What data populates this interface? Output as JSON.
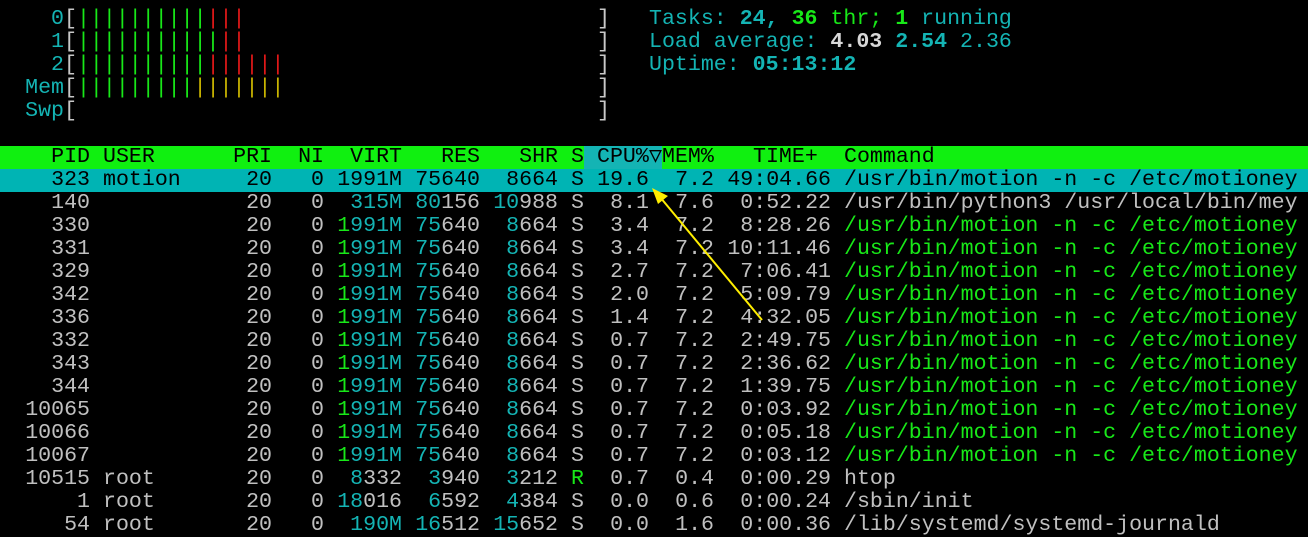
{
  "meters": [
    {
      "label": "0",
      "segments": [
        {
          "count": 10,
          "color": "#18e818"
        },
        {
          "count": 3,
          "color": "#e01818"
        }
      ]
    },
    {
      "label": "1",
      "segments": [
        {
          "count": 11,
          "color": "#18e818"
        },
        {
          "count": 2,
          "color": "#e01818"
        }
      ]
    },
    {
      "label": "2",
      "segments": [
        {
          "count": 10,
          "color": "#18e818"
        },
        {
          "count": 6,
          "color": "#e01818"
        }
      ]
    },
    {
      "label": "Mem",
      "segments": [
        {
          "count": 9,
          "color": "#18e818"
        },
        {
          "count": 7,
          "color": "#c8b400"
        }
      ]
    },
    {
      "label": "Swp",
      "segments": []
    }
  ],
  "summary": {
    "tasks_label": "Tasks: ",
    "tasks": "24",
    "sep": ", ",
    "threads": "36",
    "threads_label": " thr; ",
    "running": "1",
    "running_label": " running",
    "load_label": "Load average: ",
    "load1": "4.03",
    "load5": "2.54",
    "load15": "2.36",
    "uptime_label": "Uptime: ",
    "uptime": "05:13:12"
  },
  "columns": {
    "pid": "PID",
    "user": "USER",
    "pri": "PRI",
    "ni": "NI",
    "virt": "VIRT",
    "res": "RES",
    "shr": "SHR",
    "s": "S",
    "cpu": "CPU%",
    "sort_icon": "▽",
    "mem": "MEM%",
    "time": "TIME+",
    "cmd": "Command"
  },
  "sort_column": "cpu",
  "colors": {
    "header_bg": "#10f010",
    "selection_bg": "#00b4b4",
    "annotation_arrow": "#ffee00"
  },
  "processes": [
    {
      "pid": "323",
      "user": "motion",
      "pri": "20",
      "ni": "0",
      "virt": "1991M",
      "res": "75640",
      "shr": "8664",
      "s": "S",
      "cpu": "19.6",
      "mem": "7.2",
      "time": "49:04.66",
      "cmd": "/usr/bin/motion -n -c /etc/motioney",
      "selected": true
    },
    {
      "pid": "140",
      "user": "",
      "pri": "20",
      "ni": "0",
      "virt": "315M",
      "res": "80156",
      "shr": "10988",
      "s": "S",
      "cpu": "8.1",
      "mem": "7.6",
      "time": "0:52.22",
      "cmd": "/usr/bin/python3 /usr/local/bin/mey"
    },
    {
      "pid": "330",
      "user": "",
      "pri": "20",
      "ni": "0",
      "virt": "1991M",
      "res": "75640",
      "shr": "8664",
      "s": "S",
      "cpu": "3.4",
      "mem": "7.2",
      "time": "8:28.26",
      "cmd": "/usr/bin/motion -n -c /etc/motioney",
      "thread": true
    },
    {
      "pid": "331",
      "user": "",
      "pri": "20",
      "ni": "0",
      "virt": "1991M",
      "res": "75640",
      "shr": "8664",
      "s": "S",
      "cpu": "3.4",
      "mem": "7.2",
      "time": "10:11.46",
      "cmd": "/usr/bin/motion -n -c /etc/motioney",
      "thread": true
    },
    {
      "pid": "329",
      "user": "",
      "pri": "20",
      "ni": "0",
      "virt": "1991M",
      "res": "75640",
      "shr": "8664",
      "s": "S",
      "cpu": "2.7",
      "mem": "7.2",
      "time": "7:06.41",
      "cmd": "/usr/bin/motion -n -c /etc/motioney",
      "thread": true
    },
    {
      "pid": "342",
      "user": "",
      "pri": "20",
      "ni": "0",
      "virt": "1991M",
      "res": "75640",
      "shr": "8664",
      "s": "S",
      "cpu": "2.0",
      "mem": "7.2",
      "time": "5:09.79",
      "cmd": "/usr/bin/motion -n -c /etc/motioney",
      "thread": true
    },
    {
      "pid": "336",
      "user": "",
      "pri": "20",
      "ni": "0",
      "virt": "1991M",
      "res": "75640",
      "shr": "8664",
      "s": "S",
      "cpu": "1.4",
      "mem": "7.2",
      "time": "4:32.05",
      "cmd": "/usr/bin/motion -n -c /etc/motioney",
      "thread": true
    },
    {
      "pid": "332",
      "user": "",
      "pri": "20",
      "ni": "0",
      "virt": "1991M",
      "res": "75640",
      "shr": "8664",
      "s": "S",
      "cpu": "0.7",
      "mem": "7.2",
      "time": "2:49.75",
      "cmd": "/usr/bin/motion -n -c /etc/motioney",
      "thread": true
    },
    {
      "pid": "343",
      "user": "",
      "pri": "20",
      "ni": "0",
      "virt": "1991M",
      "res": "75640",
      "shr": "8664",
      "s": "S",
      "cpu": "0.7",
      "mem": "7.2",
      "time": "2:36.62",
      "cmd": "/usr/bin/motion -n -c /etc/motioney",
      "thread": true
    },
    {
      "pid": "344",
      "user": "",
      "pri": "20",
      "ni": "0",
      "virt": "1991M",
      "res": "75640",
      "shr": "8664",
      "s": "S",
      "cpu": "0.7",
      "mem": "7.2",
      "time": "1:39.75",
      "cmd": "/usr/bin/motion -n -c /etc/motioney",
      "thread": true
    },
    {
      "pid": "10065",
      "user": "",
      "pri": "20",
      "ni": "0",
      "virt": "1991M",
      "res": "75640",
      "shr": "8664",
      "s": "S",
      "cpu": "0.7",
      "mem": "7.2",
      "time": "0:03.92",
      "cmd": "/usr/bin/motion -n -c /etc/motioney",
      "thread": true
    },
    {
      "pid": "10066",
      "user": "",
      "pri": "20",
      "ni": "0",
      "virt": "1991M",
      "res": "75640",
      "shr": "8664",
      "s": "S",
      "cpu": "0.7",
      "mem": "7.2",
      "time": "0:05.18",
      "cmd": "/usr/bin/motion -n -c /etc/motioney",
      "thread": true
    },
    {
      "pid": "10067",
      "user": "",
      "pri": "20",
      "ni": "0",
      "virt": "1991M",
      "res": "75640",
      "shr": "8664",
      "s": "S",
      "cpu": "0.7",
      "mem": "7.2",
      "time": "0:03.12",
      "cmd": "/usr/bin/motion -n -c /etc/motioney",
      "thread": true
    },
    {
      "pid": "10515",
      "user": "root",
      "pri": "20",
      "ni": "0",
      "virt": "8332",
      "res": "3940",
      "shr": "3212",
      "s": "R",
      "cpu": "0.7",
      "mem": "0.4",
      "time": "0:00.29",
      "cmd": "htop"
    },
    {
      "pid": "1",
      "user": "root",
      "pri": "20",
      "ni": "0",
      "virt": "18016",
      "res": "6592",
      "shr": "4384",
      "s": "S",
      "cpu": "0.0",
      "mem": "0.6",
      "time": "0:00.24",
      "cmd": "/sbin/init"
    },
    {
      "pid": "54",
      "user": "root",
      "pri": "20",
      "ni": "0",
      "virt": "190M",
      "res": "16512",
      "shr": "15652",
      "s": "S",
      "cpu": "0.0",
      "mem": "1.6",
      "time": "0:00.36",
      "cmd": "/lib/systemd/systemd-journald"
    }
  ]
}
